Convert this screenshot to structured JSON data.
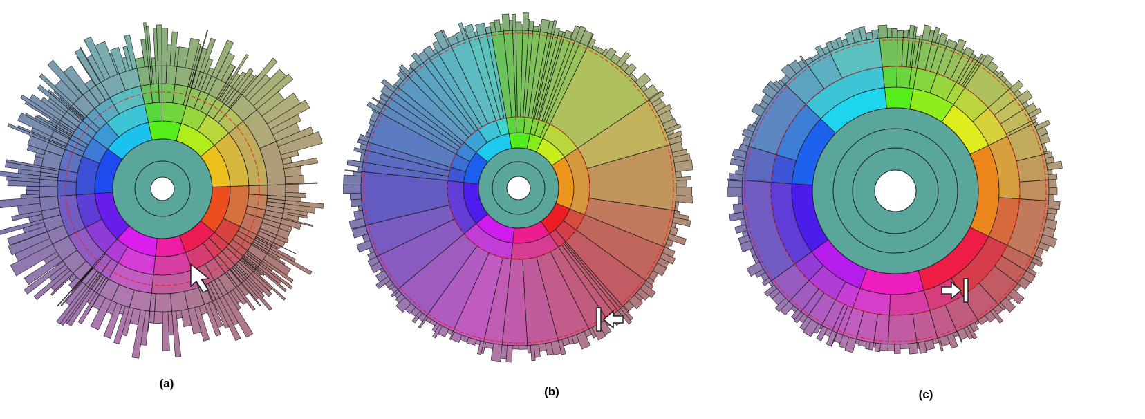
{
  "panels": [
    {
      "label": "(a)",
      "pointer_icon": "arrow-cursor-icon"
    },
    {
      "label": "(b)",
      "pointer_icon": "expand-left-icon"
    },
    {
      "label": "(c)",
      "pointer_icon": "expand-right-icon"
    }
  ],
  "colors": {
    "stroke": "#1a1a1a",
    "divider": "#e02020",
    "center": "#ffffff",
    "core": "#5aa69a"
  }
}
